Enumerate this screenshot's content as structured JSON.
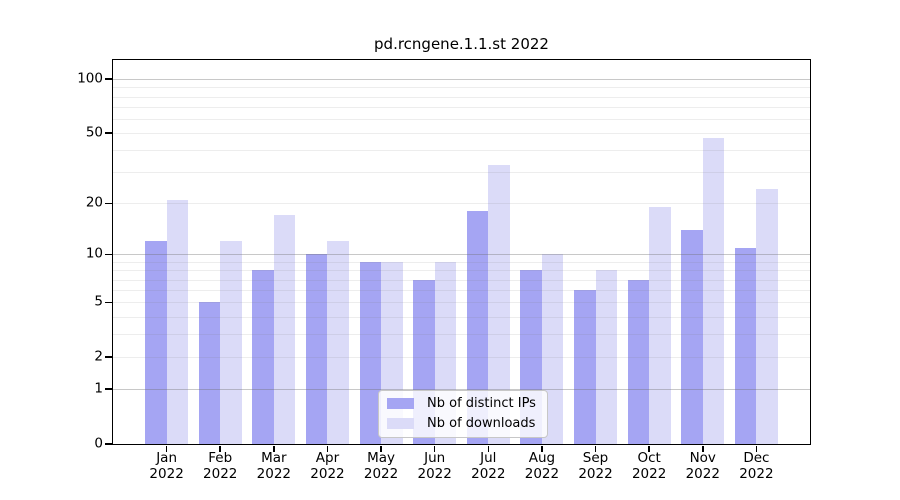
{
  "chart_data": {
    "type": "bar",
    "title": "pd.rcngene.1.1.st 2022",
    "year": "2022",
    "categories": [
      "Jan",
      "Feb",
      "Mar",
      "Apr",
      "May",
      "Jun",
      "Jul",
      "Aug",
      "Sep",
      "Oct",
      "Nov",
      "Dec"
    ],
    "series": [
      {
        "name": "Nb of distinct IPs",
        "color": "#a5a5f3",
        "values": [
          12,
          5,
          8,
          10,
          9,
          7,
          18,
          8,
          6,
          7,
          14,
          11
        ]
      },
      {
        "name": "Nb of downloads",
        "color": "#dbdbf8",
        "values": [
          21,
          12,
          17,
          12,
          9,
          9,
          33,
          10,
          8,
          19,
          47,
          24
        ]
      }
    ],
    "xlabel": "",
    "ylabel": "",
    "yscale": "log1p",
    "ylim": [
      0,
      128
    ],
    "yticks": [
      0,
      1,
      2,
      5,
      10,
      20,
      50,
      100
    ],
    "gridlines": {
      "major": [
        1,
        10,
        100
      ],
      "minor": [
        2,
        3,
        4,
        5,
        6,
        7,
        8,
        9,
        20,
        30,
        40,
        50,
        60,
        70,
        80,
        90
      ]
    },
    "grid": "on",
    "legend_position": "inside-bottom-center"
  }
}
